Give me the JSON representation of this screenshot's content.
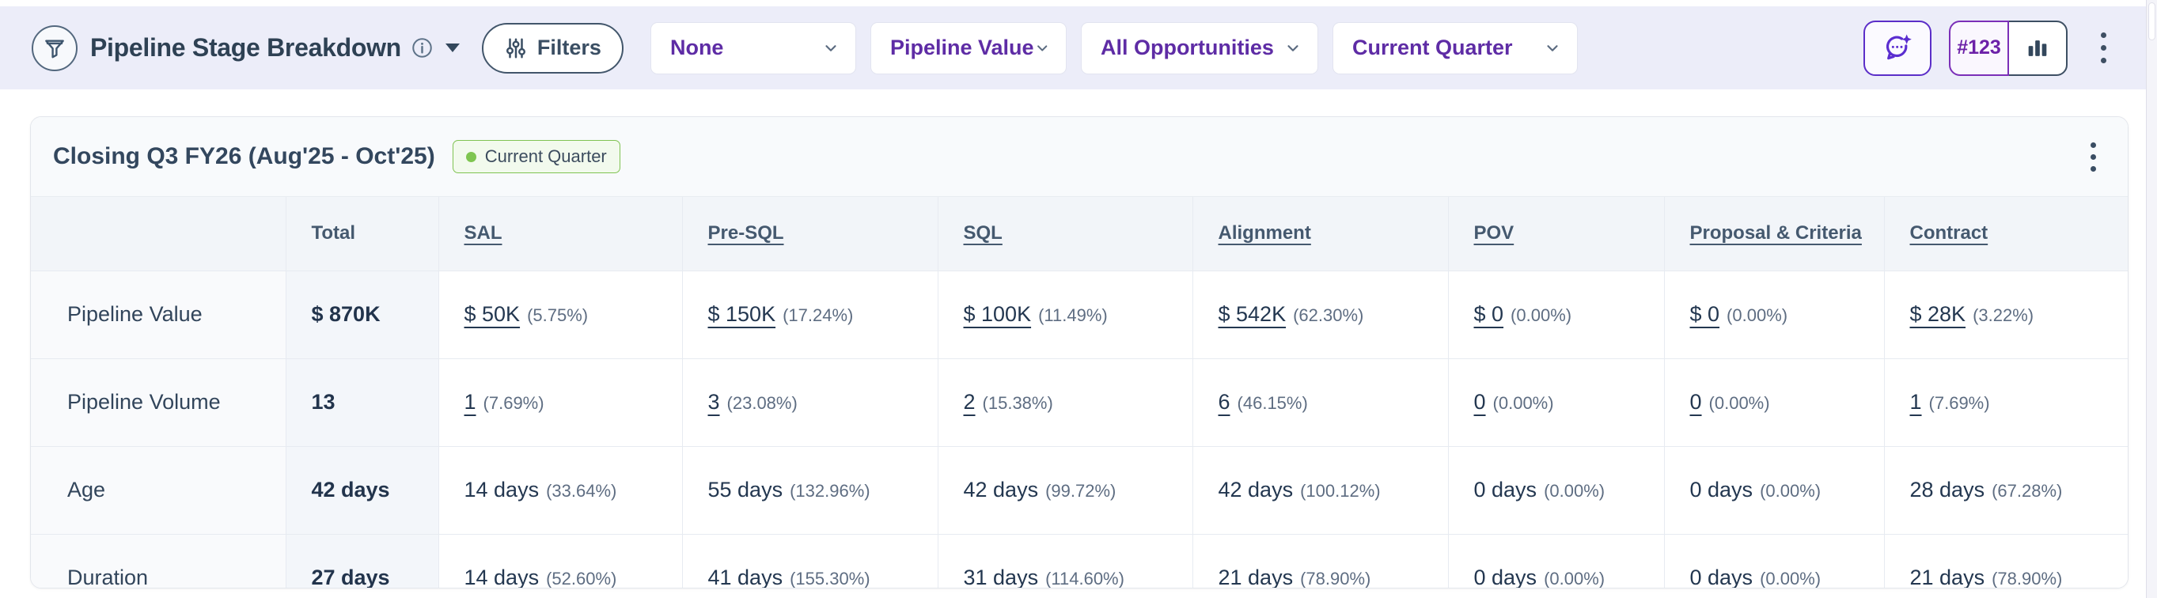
{
  "toolbar": {
    "title": "Pipeline Stage Breakdown",
    "filters_label": "Filters",
    "dropdowns": [
      {
        "value": "None"
      },
      {
        "value": "Pipeline Value"
      },
      {
        "value": "All Opportunities"
      },
      {
        "value": "Current Quarter"
      }
    ],
    "metric_toggle_label": "#123"
  },
  "card": {
    "title": "Closing Q3 FY26 (Aug'25 - Oct'25)",
    "badge": "Current Quarter"
  },
  "table": {
    "columns": [
      "Total",
      "SAL",
      "Pre-SQL",
      "SQL",
      "Alignment",
      "POV",
      "Proposal & Criteria",
      "Contract"
    ],
    "rows": [
      {
        "label": "Pipeline Value",
        "total": "$ 870K",
        "linked": true,
        "cells": [
          {
            "value": "$ 50K",
            "pct": "(5.75%)"
          },
          {
            "value": "$ 150K",
            "pct": "(17.24%)"
          },
          {
            "value": "$ 100K",
            "pct": "(11.49%)"
          },
          {
            "value": "$ 542K",
            "pct": "(62.30%)"
          },
          {
            "value": "$ 0",
            "pct": "(0.00%)"
          },
          {
            "value": "$ 0",
            "pct": "(0.00%)"
          },
          {
            "value": "$ 28K",
            "pct": "(3.22%)"
          }
        ]
      },
      {
        "label": "Pipeline Volume",
        "total": "13",
        "linked": true,
        "cells": [
          {
            "value": "1",
            "pct": "(7.69%)"
          },
          {
            "value": "3",
            "pct": "(23.08%)"
          },
          {
            "value": "2",
            "pct": "(15.38%)"
          },
          {
            "value": "6",
            "pct": "(46.15%)"
          },
          {
            "value": "0",
            "pct": "(0.00%)"
          },
          {
            "value": "0",
            "pct": "(0.00%)"
          },
          {
            "value": "1",
            "pct": "(7.69%)"
          }
        ]
      },
      {
        "label": "Age",
        "total": "42 days",
        "linked": false,
        "cells": [
          {
            "value": "14 days",
            "pct": "(33.64%)"
          },
          {
            "value": "55 days",
            "pct": "(132.96%)"
          },
          {
            "value": "42 days",
            "pct": "(99.72%)"
          },
          {
            "value": "42 days",
            "pct": "(100.12%)"
          },
          {
            "value": "0 days",
            "pct": "(0.00%)"
          },
          {
            "value": "0 days",
            "pct": "(0.00%)"
          },
          {
            "value": "28 days",
            "pct": "(67.28%)"
          }
        ]
      },
      {
        "label": "Duration",
        "total": "27 days",
        "linked": false,
        "cells": [
          {
            "value": "14 days",
            "pct": "(52.60%)"
          },
          {
            "value": "41 days",
            "pct": "(155.30%)"
          },
          {
            "value": "31 days",
            "pct": "(114.60%)"
          },
          {
            "value": "21 days",
            "pct": "(78.90%)"
          },
          {
            "value": "0 days",
            "pct": "(0.00%)"
          },
          {
            "value": "0 days",
            "pct": "(0.00%)"
          },
          {
            "value": "21 days",
            "pct": "(78.90%)"
          }
        ]
      }
    ]
  },
  "chart_data": {
    "type": "table",
    "title": "Closing Q3 FY26 (Aug'25 - Oct'25)",
    "columns": [
      "Total",
      "SAL",
      "Pre-SQL",
      "SQL",
      "Alignment",
      "POV",
      "Proposal & Criteria",
      "Contract"
    ],
    "rows": [
      {
        "metric": "Pipeline Value",
        "total": "$ 870K",
        "values": [
          "$ 50K",
          "$ 150K",
          "$ 100K",
          "$ 542K",
          "$ 0",
          "$ 0",
          "$ 28K"
        ],
        "percents": [
          "5.75%",
          "17.24%",
          "11.49%",
          "62.30%",
          "0.00%",
          "0.00%",
          "3.22%"
        ]
      },
      {
        "metric": "Pipeline Volume",
        "total": "13",
        "values": [
          "1",
          "3",
          "2",
          "6",
          "0",
          "0",
          "1"
        ],
        "percents": [
          "7.69%",
          "23.08%",
          "15.38%",
          "46.15%",
          "0.00%",
          "0.00%",
          "7.69%"
        ]
      },
      {
        "metric": "Age",
        "total": "42 days",
        "values": [
          "14 days",
          "55 days",
          "42 days",
          "42 days",
          "0 days",
          "0 days",
          "28 days"
        ],
        "percents": [
          "33.64%",
          "132.96%",
          "99.72%",
          "100.12%",
          "0.00%",
          "0.00%",
          "67.28%"
        ]
      },
      {
        "metric": "Duration",
        "total": "27 days",
        "values": [
          "14 days",
          "41 days",
          "31 days",
          "21 days",
          "0 days",
          "0 days",
          "21 days"
        ],
        "percents": [
          "52.60%",
          "155.30%",
          "114.60%",
          "78.90%",
          "0.00%",
          "0.00%",
          "78.90%"
        ]
      }
    ]
  },
  "colors": {
    "toolbar_bg": "#ECEDF9",
    "accent_purple": "#5E2CA5",
    "ai_purple": "#5B2EC8",
    "badge_green": "#7EC550",
    "slate_dark": "#33475C",
    "table_border": "#E7EBF1"
  }
}
